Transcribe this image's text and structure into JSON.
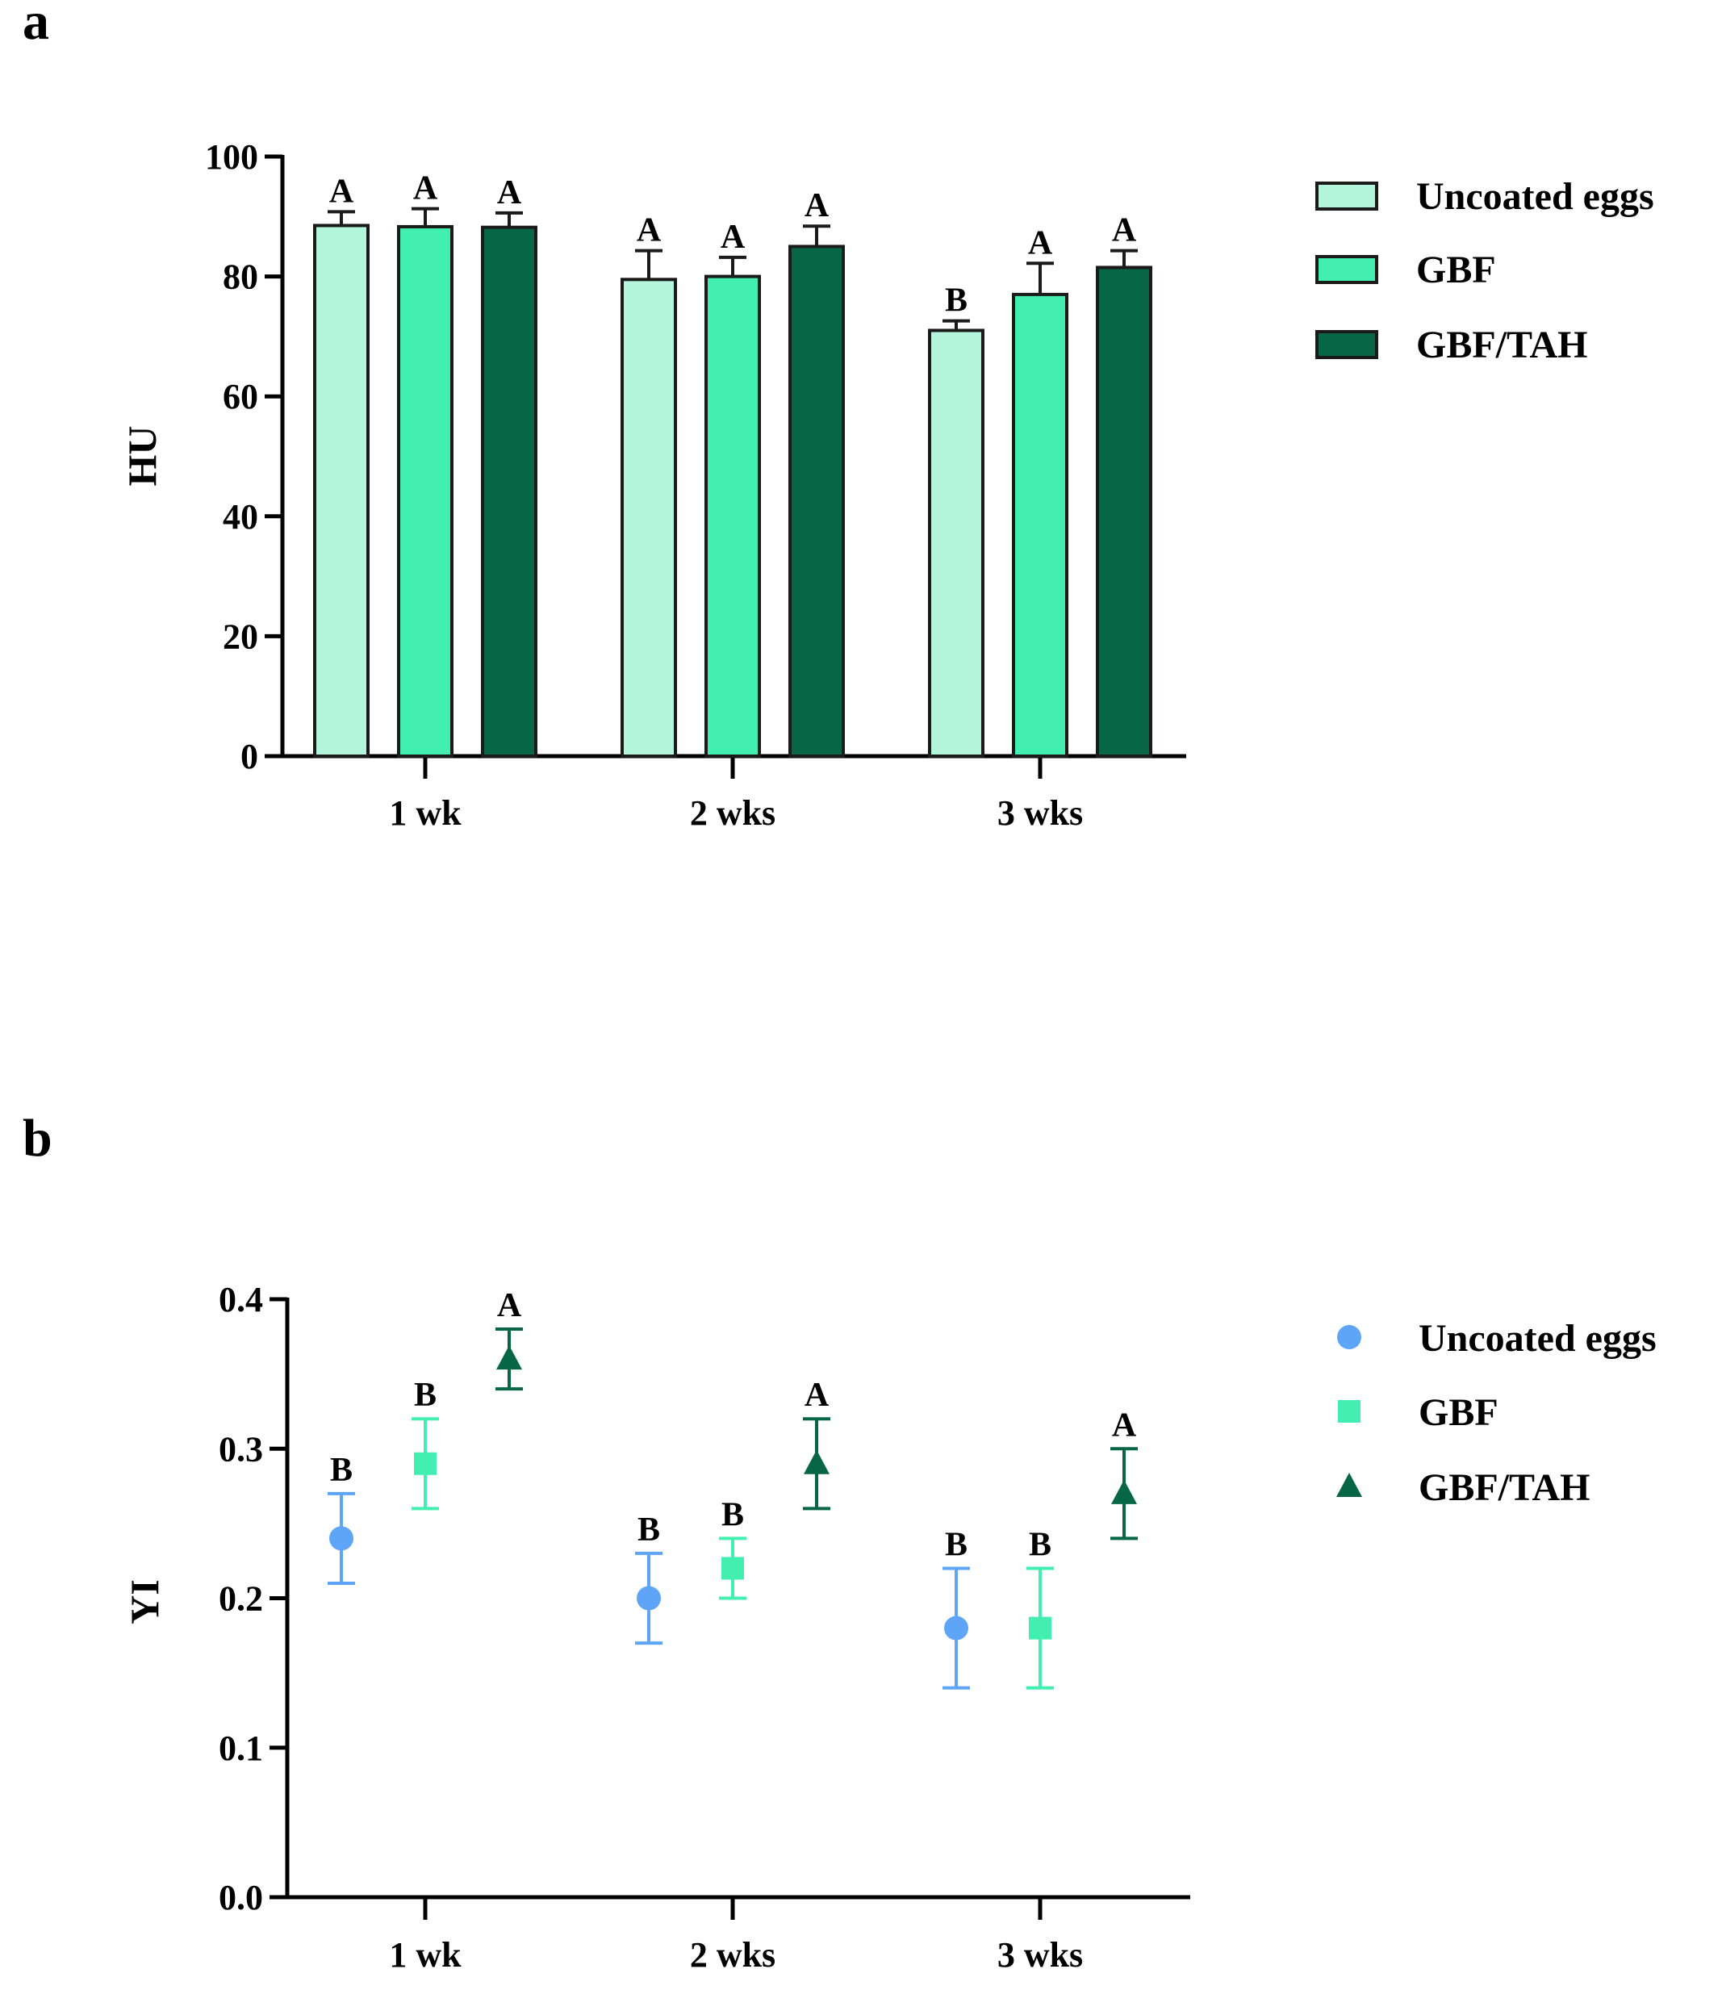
{
  "chart_data": [
    {
      "panel": "a",
      "type": "bar",
      "title": "",
      "xlabel": "",
      "ylabel": "HU",
      "ylim": [
        0,
        100
      ],
      "yticks": [
        "0",
        "20",
        "40",
        "60",
        "80",
        "100"
      ],
      "grid": false,
      "legend_position": "top-right",
      "categories": [
        "1 wk",
        "2 wks",
        "3 wks"
      ],
      "series": [
        {
          "name": "Uncoated eggs",
          "color": "#b4f5de",
          "values": [
            88.5,
            79.5,
            71.0
          ],
          "errors": [
            2.3,
            4.8,
            1.6
          ],
          "labels": [
            "A",
            "A",
            "B"
          ]
        },
        {
          "name": "GBF",
          "color": "#42efb0",
          "values": [
            88.3,
            80.0,
            77.0
          ],
          "errors": [
            3.0,
            3.2,
            5.2
          ],
          "labels": [
            "A",
            "A",
            "A"
          ]
        },
        {
          "name": "GBF/TAH",
          "color": "#076645",
          "values": [
            88.2,
            85.0,
            81.5
          ],
          "errors": [
            2.4,
            3.4,
            2.8
          ],
          "labels": [
            "A",
            "A",
            "A"
          ]
        }
      ]
    },
    {
      "panel": "b",
      "type": "scatter",
      "title": "",
      "xlabel": "",
      "ylabel": "YI",
      "ylim": [
        0.0,
        0.4
      ],
      "yticks": [
        "0.0",
        "0.1",
        "0.2",
        "0.3",
        "0.4"
      ],
      "grid": false,
      "legend_position": "top-right",
      "categories": [
        "1 wk",
        "2 wks",
        "3 wks"
      ],
      "series": [
        {
          "name": "Uncoated eggs",
          "marker": "circle",
          "color": "#5ea4f7",
          "values": [
            0.24,
            0.2,
            0.18
          ],
          "errors": [
            0.03,
            0.03,
            0.04
          ],
          "labels": [
            "B",
            "B",
            "B"
          ]
        },
        {
          "name": "GBF",
          "marker": "square",
          "color": "#42efb0",
          "values": [
            0.29,
            0.22,
            0.18
          ],
          "errors": [
            0.03,
            0.02,
            0.04
          ],
          "labels": [
            "B",
            "B",
            "B"
          ]
        },
        {
          "name": "GBF/TAH",
          "marker": "triangle",
          "color": "#076645",
          "values": [
            0.36,
            0.29,
            0.27
          ],
          "errors": [
            0.02,
            0.03,
            0.03
          ],
          "labels": [
            "A",
            "A",
            "A"
          ]
        }
      ]
    }
  ]
}
